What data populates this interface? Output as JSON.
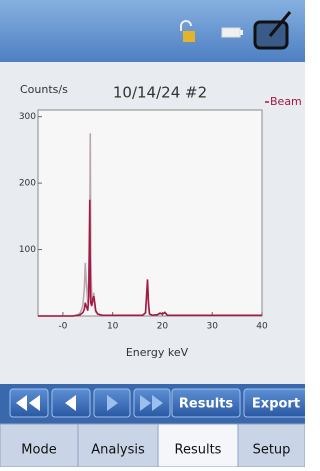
{
  "chart_data": {
    "type": "line",
    "title": "10/14/24 #2",
    "y_label": "Counts/s",
    "x_label": "Energy keV",
    "x": [
      -5,
      0,
      2,
      3,
      3.5,
      4,
      4.3,
      4.5,
      4.7,
      5,
      5.2,
      5.4,
      5.5,
      5.6,
      5.8,
      6,
      6.2,
      6.4,
      6.6,
      7,
      8,
      10,
      12,
      14,
      16,
      16.6,
      16.8,
      17,
      17.2,
      17.4,
      18,
      19,
      19.5,
      20,
      20.5,
      21,
      25,
      30,
      35,
      40
    ],
    "series": [
      {
        "color": "#b9a7b0",
        "values": [
          0,
          0,
          0,
          2,
          5,
          15,
          40,
          80,
          50,
          20,
          60,
          120,
          275,
          90,
          30,
          20,
          35,
          15,
          6,
          3,
          1,
          1,
          1,
          1,
          1,
          4,
          25,
          45,
          15,
          3,
          1,
          2,
          5,
          3,
          6,
          1,
          1,
          1,
          1,
          1
        ]
      },
      {
        "name": "Beam",
        "color": "#a3193f",
        "values": [
          0,
          0,
          0,
          1,
          2,
          5,
          10,
          20,
          15,
          8,
          30,
          175,
          60,
          20,
          15,
          25,
          30,
          20,
          8,
          3,
          1,
          1,
          1,
          1,
          1,
          5,
          30,
          55,
          20,
          3,
          1,
          2,
          4,
          3,
          5,
          1,
          1,
          1,
          1,
          1
        ]
      }
    ],
    "xlim": [
      -5,
      40
    ],
    "xticks": [
      {
        "value": 0,
        "label": "-0"
      },
      10,
      20,
      30,
      40
    ],
    "ylim": [
      0,
      310
    ],
    "yticks": [
      100,
      200,
      300
    ]
  },
  "toolbar": {
    "buttons": [
      "Results",
      "Export"
    ]
  },
  "tabs": [
    "Mode",
    "Analysis",
    "Results",
    "Setup"
  ]
}
